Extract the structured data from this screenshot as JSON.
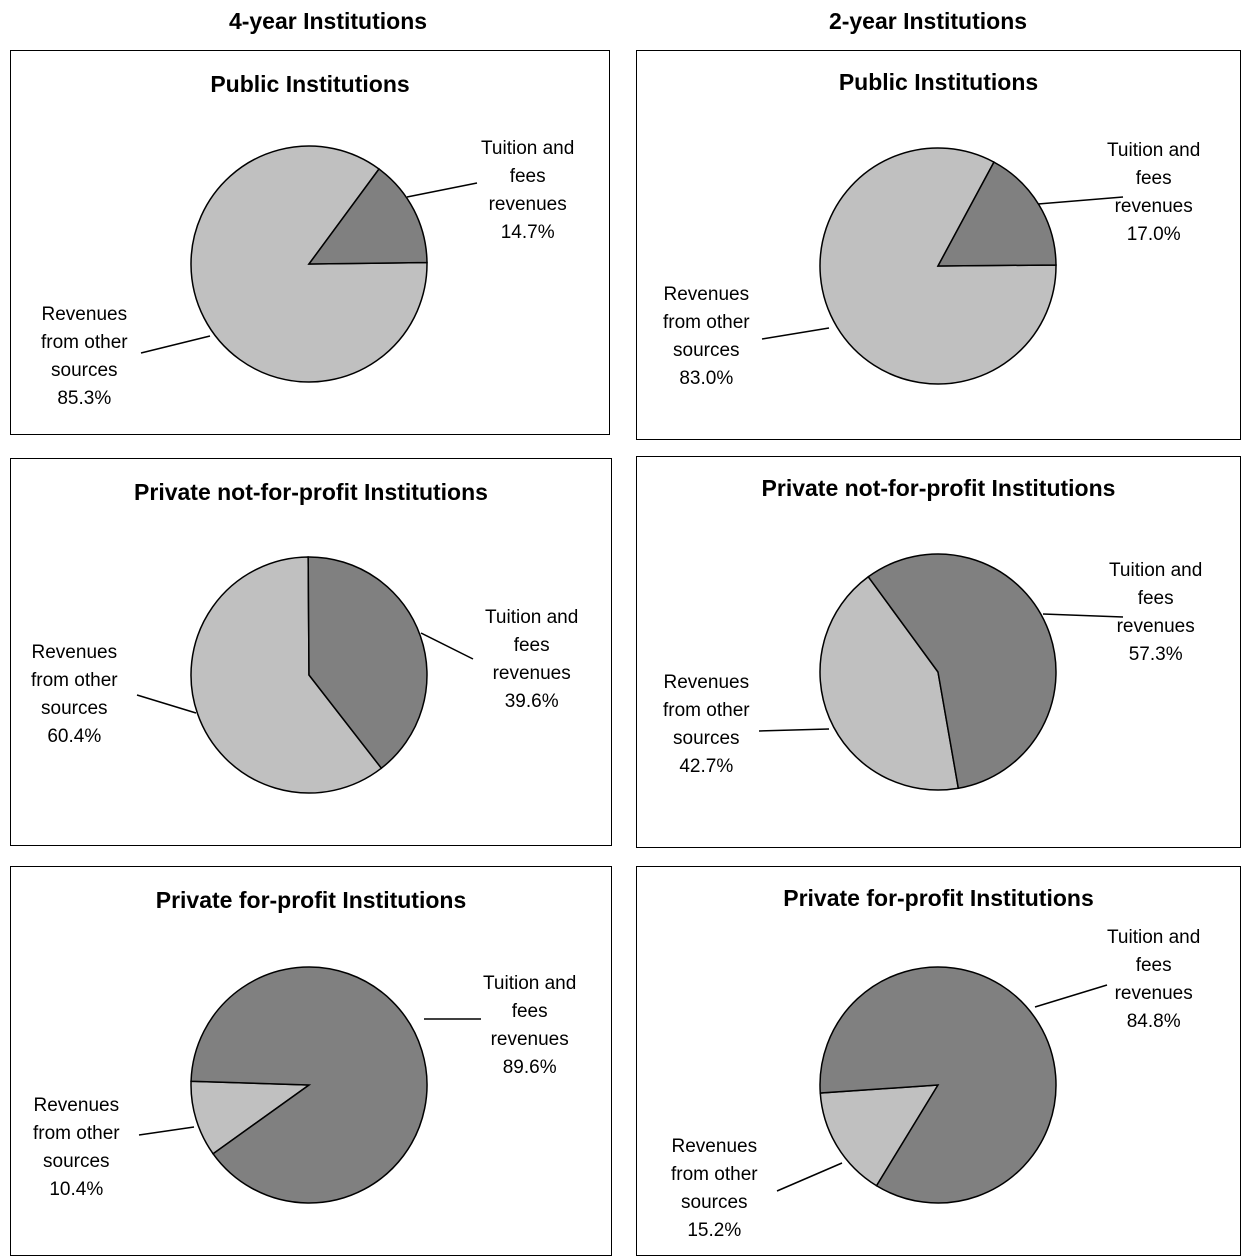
{
  "headers": {
    "four_year": "4-year Institutions",
    "two_year": "2-year Institutions"
  },
  "colors": {
    "tuition": "#808080",
    "other": "#c0c0c0"
  },
  "chart_data": [
    {
      "type": "pie",
      "group": "4-year Institutions",
      "title": "Public Institutions",
      "slices": [
        {
          "label": "Tuition and fees revenues",
          "value": 14.7,
          "display": "14.7%"
        },
        {
          "label": "Revenues from other sources",
          "value": 85.3,
          "display": "85.3%"
        }
      ]
    },
    {
      "type": "pie",
      "group": "2-year Institutions",
      "title": "Public Institutions",
      "slices": [
        {
          "label": "Tuition and fees revenues",
          "value": 17.0,
          "display": "17.0%"
        },
        {
          "label": "Revenues from other sources",
          "value": 83.0,
          "display": "83.0%"
        }
      ]
    },
    {
      "type": "pie",
      "group": "4-year Institutions",
      "title": "Private not-for-profit Institutions",
      "slices": [
        {
          "label": "Tuition and fees revenues",
          "value": 39.6,
          "display": "39.6%"
        },
        {
          "label": "Revenues from other sources",
          "value": 60.4,
          "display": "60.4%"
        }
      ]
    },
    {
      "type": "pie",
      "group": "2-year Institutions",
      "title": "Private not-for-profit Institutions",
      "slices": [
        {
          "label": "Tuition and fees revenues",
          "value": 57.3,
          "display": "57.3%"
        },
        {
          "label": "Revenues from other sources",
          "value": 42.7,
          "display": "42.7%"
        }
      ]
    },
    {
      "type": "pie",
      "group": "4-year Institutions",
      "title": "Private for-profit Institutions",
      "slices": [
        {
          "label": "Tuition and fees revenues",
          "value": 89.6,
          "display": "89.6%"
        },
        {
          "label": "Revenues from other sources",
          "value": 10.4,
          "display": "10.4%"
        }
      ]
    },
    {
      "type": "pie",
      "group": "2-year Institutions",
      "title": "Private for-profit Institutions",
      "slices": [
        {
          "label": "Tuition and fees revenues",
          "value": 84.8,
          "display": "84.8%"
        },
        {
          "label": "Revenues from other sources",
          "value": 15.2,
          "display": "15.2%"
        }
      ]
    }
  ],
  "label_lines": {
    "tuition": [
      "Tuition and",
      "fees",
      "revenues"
    ],
    "other": [
      "Revenues",
      "from other",
      "sources"
    ]
  }
}
